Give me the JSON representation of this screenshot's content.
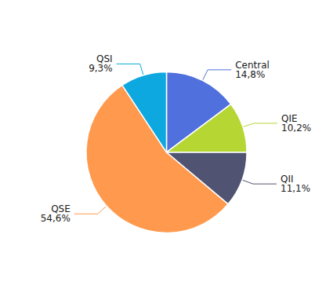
{
  "chart_data": {
    "type": "pie",
    "categories": [
      "Central",
      "QIE",
      "QII",
      "QSE",
      "QSI"
    ],
    "values": [
      14.8,
      10.2,
      11.1,
      54.6,
      9.3
    ],
    "value_labels": [
      "14,8%",
      "10,2%",
      "11,1%",
      "54,6%",
      "9,3%"
    ],
    "data_labels": true,
    "legend": false
  }
}
